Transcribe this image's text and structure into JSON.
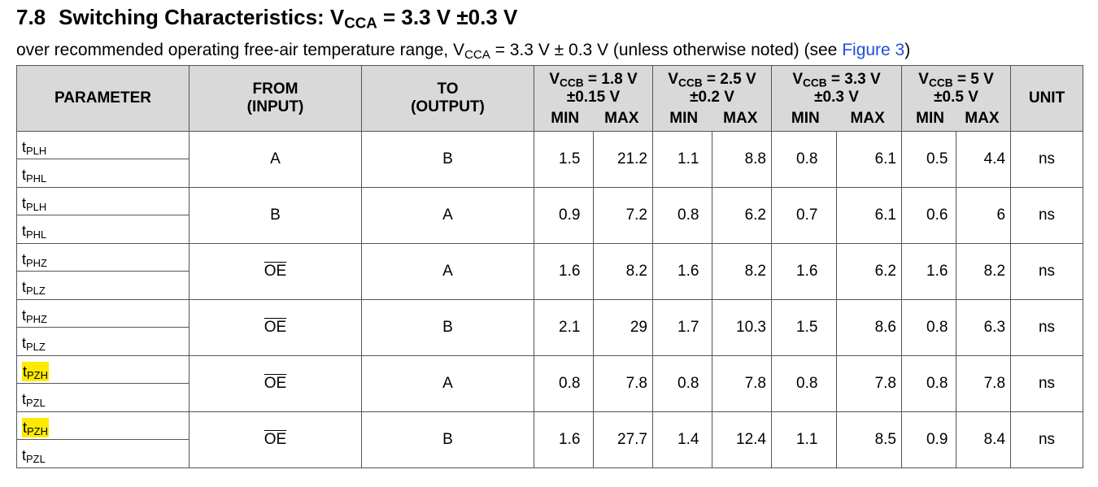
{
  "heading": {
    "number": "7.8",
    "title_prefix": "Switching Characteristics: V",
    "title_sub": "CCA",
    "title_suffix": " = 3.3 V ±0.3 V"
  },
  "subheading": {
    "text_prefix": "over recommended operating free-air temperature range, V",
    "text_sub": "CCA",
    "text_mid": " = 3.3 V ± 0.3 V (unless otherwise noted) (see ",
    "link": "Figure 3",
    "text_suffix": ")"
  },
  "table": {
    "headers": {
      "parameter": "PARAMETER",
      "from_line1": "FROM",
      "from_line2": "(INPUT)",
      "to_line1": "TO",
      "to_line2": "(OUTPUT)",
      "unit": "UNIT",
      "min": "MIN",
      "max": "MAX",
      "groups": [
        {
          "prefix": "V",
          "sub": "CCB",
          "line1_suffix": " = 1.8 V",
          "line2": "±0.15 V"
        },
        {
          "prefix": "V",
          "sub": "CCB",
          "line1_suffix": " = 2.5 V",
          "line2": "±0.2 V"
        },
        {
          "prefix": "V",
          "sub": "CCB",
          "line1_suffix": " = 3.3 V",
          "line2": "±0.3 V"
        },
        {
          "prefix": "V",
          "sub": "CCB",
          "line1_suffix": " = 5 V",
          "line2": "±0.5 V"
        }
      ]
    },
    "rows": [
      {
        "p1": "PLH",
        "p2": "PHL",
        "from": "A",
        "to": "B",
        "v": [
          "1.5",
          "21.2",
          "1.1",
          "8.8",
          "0.8",
          "6.1",
          "0.5",
          "4.4"
        ],
        "unit": "ns"
      },
      {
        "p1": "PLH",
        "p2": "PHL",
        "from": "B",
        "to": "A",
        "v": [
          "0.9",
          "7.2",
          "0.8",
          "6.2",
          "0.7",
          "6.1",
          "0.6",
          "6"
        ],
        "unit": "ns"
      },
      {
        "p1": "PHZ",
        "p2": "PLZ",
        "from": "OE",
        "to": "A",
        "v": [
          "1.6",
          "8.2",
          "1.6",
          "8.2",
          "1.6",
          "6.2",
          "1.6",
          "8.2"
        ],
        "unit": "ns"
      },
      {
        "p1": "PHZ",
        "p2": "PLZ",
        "from": "OE",
        "to": "B",
        "v": [
          "2.1",
          "29",
          "1.7",
          "10.3",
          "1.5",
          "8.6",
          "0.8",
          "6.3"
        ],
        "unit": "ns"
      },
      {
        "p1": "PZH",
        "p2": "PZL",
        "from": "OE",
        "to": "A",
        "v": [
          "0.8",
          "7.8",
          "0.8",
          "7.8",
          "0.8",
          "7.8",
          "0.8",
          "7.8"
        ],
        "unit": "ns"
      },
      {
        "p1": "PZH",
        "p2": "PZL",
        "from": "OE",
        "to": "B",
        "v": [
          "1.6",
          "27.7",
          "1.4",
          "12.4",
          "1.1",
          "8.5",
          "0.9",
          "8.4"
        ],
        "unit": "ns"
      }
    ],
    "param_prefix": "t",
    "highlight_color": "#ffea00"
  }
}
